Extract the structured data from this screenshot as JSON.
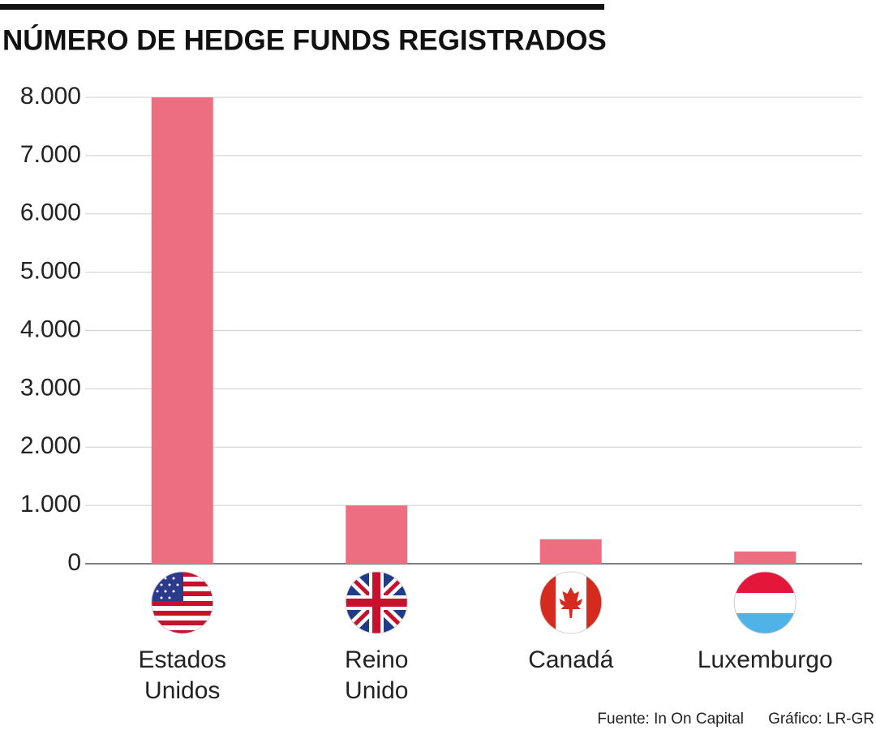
{
  "chart_data": {
    "type": "bar",
    "title": "NÚMERO DE HEDGE FUNDS REGISTRADOS",
    "categories": [
      "Estados Unidos",
      "Reino Unido",
      "Canadá",
      "Luxemburgo"
    ],
    "values": [
      8000,
      1000,
      420,
      210
    ],
    "color": "#ec6e80",
    "ylim": [
      0,
      8000
    ],
    "yticks": [
      0,
      {
        "value": 1000,
        "label": "1.000"
      },
      {
        "value": 2000,
        "label": "2.000"
      },
      {
        "value": 3000,
        "label": "3.000"
      },
      {
        "value": 4000,
        "label": "4.000"
      },
      {
        "value": 5000,
        "label": "5.000"
      },
      {
        "value": 6000,
        "label": "6.000"
      },
      {
        "value": 7000,
        "label": "7.000"
      },
      {
        "value": 8000,
        "label": "8.000"
      }
    ],
    "grid": true,
    "source": "Fuente: In On Capital",
    "credit": "Gráfico: LR-GR"
  }
}
